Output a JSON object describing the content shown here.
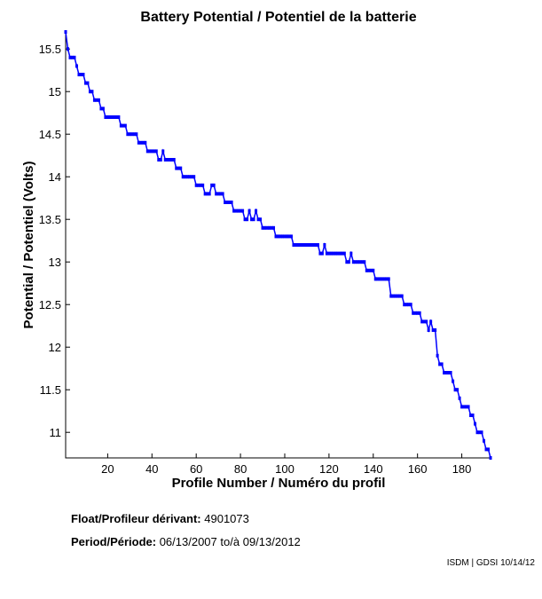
{
  "chart_data": {
    "type": "line",
    "title": "Battery Potential / Potentiel de la batterie",
    "xlabel": "Profile Number / Numéro du profil",
    "ylabel": "Potential / Potentiel (Volts)",
    "xlim": [
      1,
      193
    ],
    "ylim": [
      10.7,
      15.7
    ],
    "xticks": [
      20,
      40,
      60,
      80,
      100,
      120,
      140,
      160,
      180
    ],
    "yticks": [
      11,
      11.5,
      12,
      12.5,
      13,
      13.5,
      14,
      14.5,
      15,
      15.5
    ],
    "grid": false,
    "markers": true,
    "color": "#0000ff",
    "series": [
      {
        "x_start": 1,
        "values": [
          15.7,
          15.5,
          15.4,
          15.4,
          15.4,
          15.3,
          15.2,
          15.2,
          15.2,
          15.1,
          15.1,
          15.0,
          15.0,
          14.9,
          14.9,
          14.9,
          14.8,
          14.8,
          14.7,
          14.7,
          14.7,
          14.7,
          14.7,
          14.7,
          14.7,
          14.6,
          14.6,
          14.6,
          14.5,
          14.5,
          14.5,
          14.5,
          14.5,
          14.4,
          14.4,
          14.4,
          14.4,
          14.3,
          14.3,
          14.3,
          14.3,
          14.3,
          14.2,
          14.2,
          14.3,
          14.2,
          14.2,
          14.2,
          14.2,
          14.2,
          14.1,
          14.1,
          14.1,
          14.0,
          14.0,
          14.0,
          14.0,
          14.0,
          14.0,
          13.9,
          13.9,
          13.9,
          13.9,
          13.8,
          13.8,
          13.8,
          13.9,
          13.9,
          13.8,
          13.8,
          13.8,
          13.8,
          13.7,
          13.7,
          13.7,
          13.7,
          13.6,
          13.6,
          13.6,
          13.6,
          13.6,
          13.5,
          13.5,
          13.6,
          13.5,
          13.5,
          13.6,
          13.5,
          13.5,
          13.4,
          13.4,
          13.4,
          13.4,
          13.4,
          13.4,
          13.3,
          13.3,
          13.3,
          13.3,
          13.3,
          13.3,
          13.3,
          13.3,
          13.2,
          13.2,
          13.2,
          13.2,
          13.2,
          13.2,
          13.2,
          13.2,
          13.2,
          13.2,
          13.2,
          13.2,
          13.1,
          13.1,
          13.2,
          13.1,
          13.1,
          13.1,
          13.1,
          13.1,
          13.1,
          13.1,
          13.1,
          13.1,
          13.0,
          13.0,
          13.1,
          13.0,
          13.0,
          13.0,
          13.0,
          13.0,
          13.0,
          12.9,
          12.9,
          12.9,
          12.9,
          12.8,
          12.8,
          12.8,
          12.8,
          12.8,
          12.8,
          12.8,
          12.6,
          12.6,
          12.6,
          12.6,
          12.6,
          12.6,
          12.5,
          12.5,
          12.5,
          12.5,
          12.4,
          12.4,
          12.4,
          12.4,
          12.3,
          12.3,
          12.3,
          12.2,
          12.3,
          12.2,
          12.2,
          11.9,
          11.8,
          11.8,
          11.7,
          11.7,
          11.7,
          11.7,
          11.6,
          11.5,
          11.5,
          11.4,
          11.3,
          11.3,
          11.3,
          11.3,
          11.2,
          11.2,
          11.1,
          11.0,
          11.0,
          11.0,
          10.9,
          10.8,
          10.8,
          10.7
        ]
      }
    ]
  },
  "info": {
    "float_label": "Float/Profileur dérivant:",
    "float_value": "4901073",
    "period_label": "Period/Période:",
    "period_start": "06/13/2007",
    "period_sep": "to/à",
    "period_end": "09/13/2012"
  },
  "credit": "ISDM | GDSI 10/14/12"
}
